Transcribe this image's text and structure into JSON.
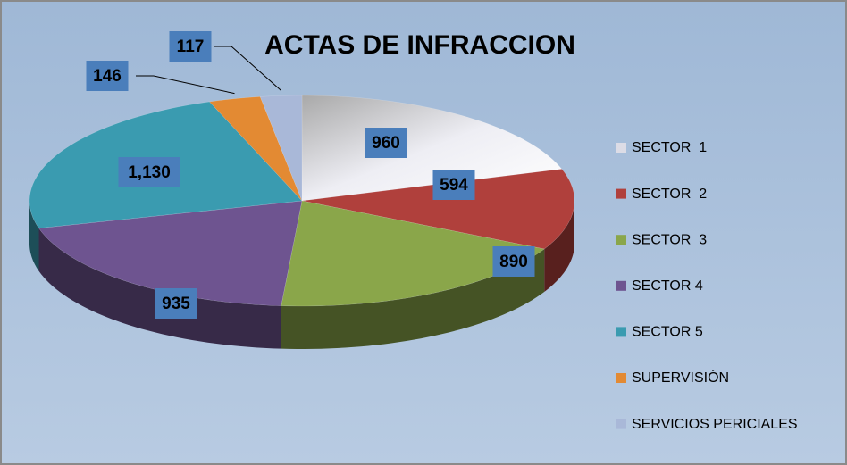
{
  "chart_data": {
    "type": "pie3d",
    "title": "ACTAS DE INFRACCION",
    "categories": [
      "SECTOR  1",
      "SECTOR  2",
      "SECTOR  3",
      "SECTOR 4",
      "SECTOR 5",
      "SUPERVISIÓN",
      "SERVICIOS PERICIALES"
    ],
    "values": [
      960,
      594,
      890,
      935,
      1130,
      146,
      117
    ],
    "value_labels": [
      "960",
      "594",
      "890",
      "935",
      "1,130",
      "146",
      "117"
    ],
    "colors": [
      "#dcdce6",
      "#b0403c",
      "#8aa64a",
      "#6e5490",
      "#3a9bb0",
      "#e38a33",
      "#a9b8d8"
    ],
    "legend": "right"
  }
}
